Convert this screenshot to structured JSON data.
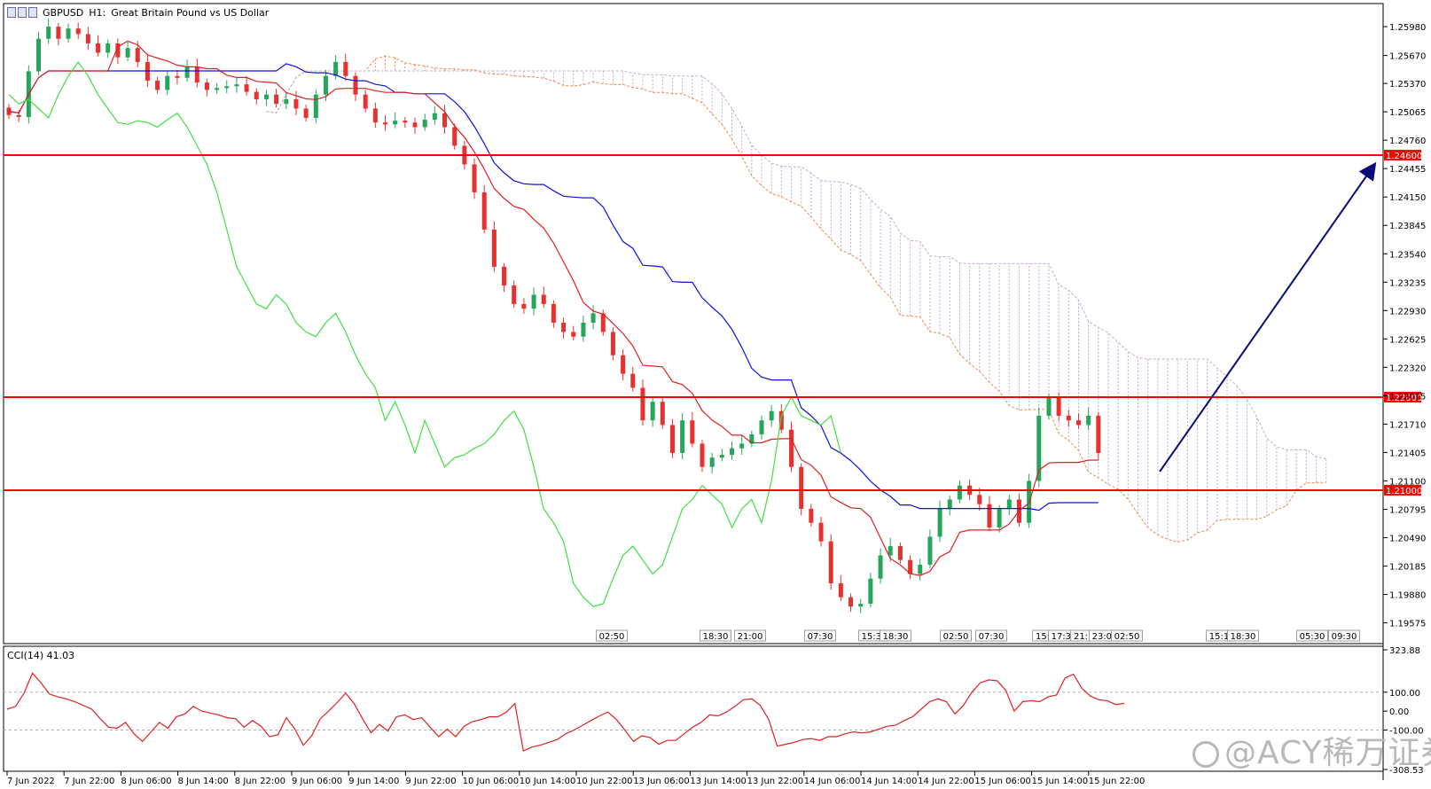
{
  "header": {
    "symbol": "GBPUSD",
    "timeframe": "H1:",
    "description": "Great Britain Pound vs US Dollar"
  },
  "indicator": {
    "label": "CCI(14) 41.03"
  },
  "watermark": {
    "text": "@ACY稀万证券"
  },
  "colors": {
    "bull": "#26a65b",
    "bear": "#e8302f",
    "tenkan": "#e02020",
    "kijun": "#1010e0",
    "chikou": "#40e040",
    "senkou_a": "#f08a4b",
    "senkou_b": "#c8a8d8",
    "hline": "#ff0000",
    "arrow": "#0a0a78",
    "cci": "#e02020"
  },
  "chart_data": [
    {
      "type": "candlestick",
      "title": "GBPUSD, H1: Great Britain Pound vs US Dollar",
      "ylim": [
        1.1939,
        1.2619
      ],
      "y_ticks": [
        "1.25980",
        "1.25670",
        "1.25370",
        "1.25065",
        "1.24760",
        "1.24455",
        "1.24150",
        "1.23845",
        "1.23540",
        "1.23235",
        "1.22930",
        "1.22625",
        "1.22320",
        "1.22015",
        "1.21710",
        "1.21405",
        "1.21100",
        "1.20795",
        "1.20490",
        "1.20185",
        "1.19880",
        "1.19575"
      ],
      "x_ticks": [
        "7 Jun 2022",
        "7 Jun 22:00",
        "8 Jun 06:00",
        "8 Jun 14:00",
        "8 Jun 22:00",
        "9 Jun 06:00",
        "9 Jun 14:00",
        "9 Jun 22:00",
        "10 Jun 06:00",
        "10 Jun 14:00",
        "10 Jun 22:00",
        "13 Jun 06:00",
        "13 Jun 14:00",
        "13 Jun 22:00",
        "14 Jun 06:00",
        "14 Jun 14:00",
        "14 Jun 22:00",
        "15 Jun 06:00",
        "15 Jun 14:00",
        "15 Jun 22:00"
      ],
      "horizontal_levels": [
        "1.24600",
        "1.22000",
        "1.21000"
      ],
      "time_markers": [
        "02:50",
        "18:30",
        "21:00",
        "07:30",
        "15:30",
        "18:30",
        "02:50",
        "07:30",
        "15:",
        "17:30",
        "21:",
        "23:00",
        "02:50",
        "15:1",
        "18:30",
        "05:30",
        "09:30"
      ],
      "candles_close": [
        1.2503,
        1.2501,
        1.255,
        1.2585,
        1.2598,
        1.2585,
        1.2596,
        1.259,
        1.258,
        1.257,
        1.258,
        1.2565,
        1.2575,
        1.256,
        1.254,
        1.253,
        1.2545,
        1.2543,
        1.2555,
        1.2538,
        1.253,
        1.2532,
        1.2534,
        1.2536,
        1.2528,
        1.252,
        1.2525,
        1.2515,
        1.252,
        1.251,
        1.25,
        1.2525,
        1.2545,
        1.256,
        1.2545,
        1.2525,
        1.251,
        1.2495,
        1.2493,
        1.2497,
        1.2495,
        1.249,
        1.2498,
        1.2505,
        1.249,
        1.247,
        1.245,
        1.242,
        1.238,
        1.234,
        1.232,
        1.23,
        1.2295,
        1.231,
        1.23,
        1.228,
        1.227,
        1.2265,
        1.228,
        1.229,
        1.227,
        1.2245,
        1.2225,
        1.221,
        1.2175,
        1.2195,
        1.217,
        1.214,
        1.2175,
        1.215,
        1.2125,
        1.2135,
        1.2138,
        1.2145,
        1.215,
        1.216,
        1.2175,
        1.2185,
        1.2165,
        1.2125,
        1.208,
        1.2065,
        1.2045,
        1.2,
        1.1985,
        1.1975,
        1.1978,
        1.2005,
        1.203,
        1.204,
        1.2025,
        1.201,
        1.202,
        1.205,
        1.208,
        1.209,
        1.2105,
        1.2095,
        1.2085,
        1.206,
        1.208,
        1.209,
        1.2065,
        1.211,
        1.218,
        1.22,
        1.218,
        1.2175,
        1.217,
        1.218,
        1.214
      ],
      "tenkan_sen": "red line",
      "kijun_sen": "blue line",
      "chikou_span": "green line",
      "arrow_target": "1.24460"
    },
    {
      "type": "line",
      "title": "CCI(14) 41.03",
      "ylim": [
        -308.53,
        323.88
      ],
      "y_ticks": [
        "323.88",
        "100.00",
        "0.00",
        "-100.00",
        "-308.53"
      ],
      "values": [
        10,
        25,
        95,
        200,
        150,
        90,
        75,
        65,
        50,
        30,
        10,
        -40,
        -85,
        -90,
        -60,
        -120,
        -160,
        -110,
        -60,
        -90,
        -30,
        -15,
        25,
        0,
        -10,
        -20,
        -35,
        -40,
        -85,
        -50,
        -80,
        -135,
        -125,
        -35,
        -95,
        -180,
        -130,
        -40,
        0,
        45,
        95,
        40,
        -40,
        -115,
        -70,
        -105,
        -30,
        -20,
        -45,
        -35,
        -85,
        -135,
        -95,
        -135,
        -80,
        -55,
        -45,
        -30,
        -30,
        -5,
        40,
        -210,
        -190,
        -180,
        -165,
        -150,
        -120,
        -100,
        -75,
        -50,
        -25,
        -5,
        -45,
        -100,
        -160,
        -130,
        -140,
        -175,
        -155,
        -155,
        -120,
        -85,
        -60,
        -20,
        -25,
        -5,
        25,
        60,
        65,
        30,
        -45,
        -185,
        -175,
        -165,
        -150,
        -145,
        -155,
        -135,
        -135,
        -120,
        -110,
        -115,
        -110,
        -95,
        -80,
        -75,
        -50,
        -30,
        10,
        50,
        65,
        50,
        -15,
        30,
        100,
        150,
        165,
        160,
        110,
        0,
        50,
        55,
        50,
        75,
        85,
        175,
        195,
        120,
        80,
        60,
        55,
        35,
        41.03
      ]
    }
  ]
}
